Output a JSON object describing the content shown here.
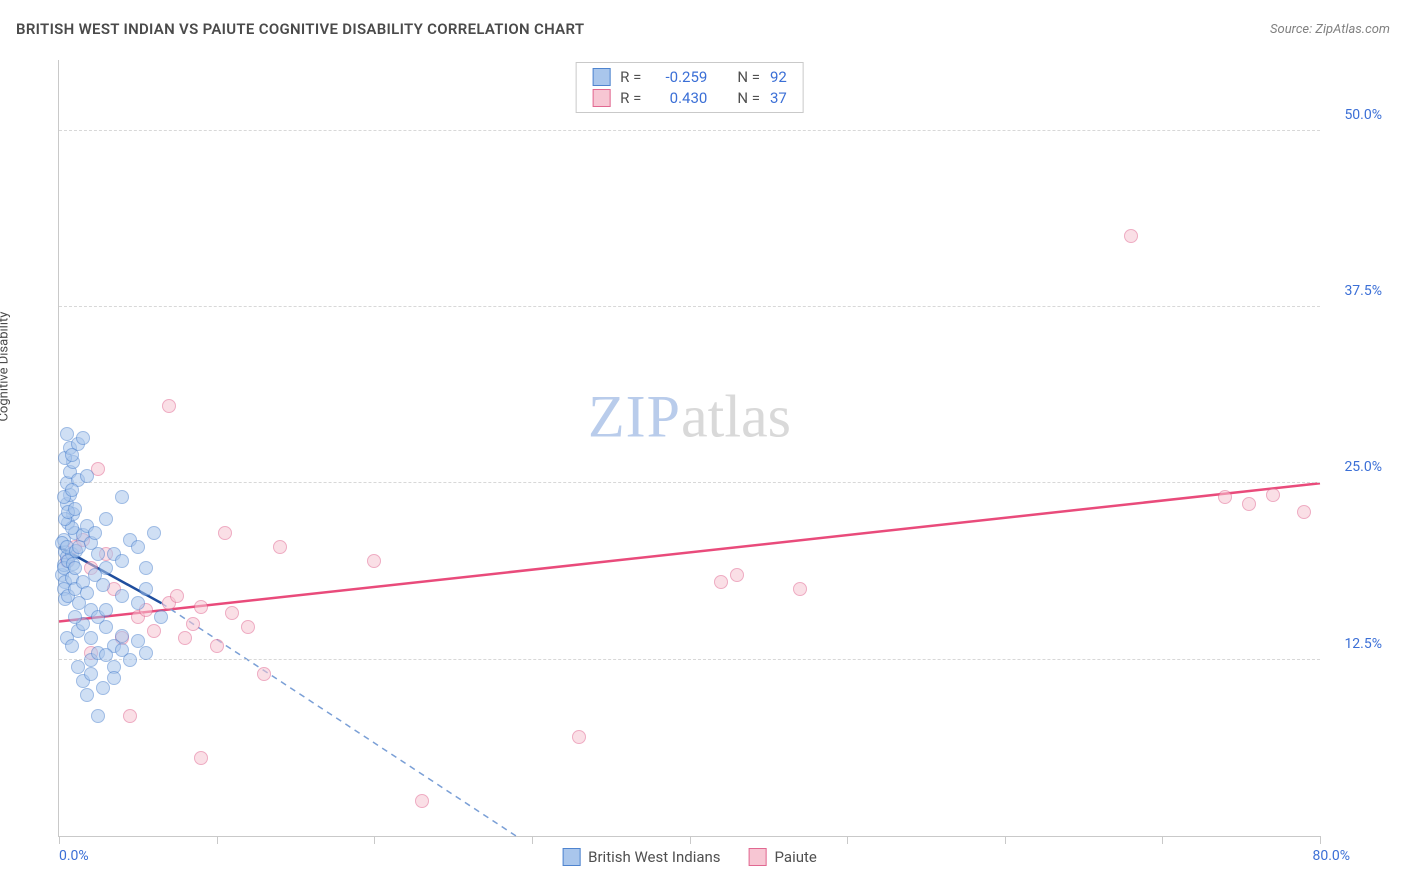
{
  "header": {
    "title": "BRITISH WEST INDIAN VS PAIUTE COGNITIVE DISABILITY CORRELATION CHART",
    "source": "Source: ZipAtlas.com"
  },
  "ylabel": "Cognitive Disability",
  "watermark": {
    "zip": "ZIP",
    "atlas": "atlas"
  },
  "axes": {
    "xmin": 0,
    "xmax": 80,
    "ymin": 0,
    "ymax": 55,
    "xticks": [
      0,
      10,
      20,
      30,
      40,
      50,
      60,
      70,
      80
    ],
    "yticks": [
      12.5,
      25.0,
      37.5,
      50.0
    ],
    "xlabels_shown": {
      "0": "0.0%",
      "80": "80.0%"
    },
    "ylabel_format_suffix": "%"
  },
  "colors": {
    "blue_fill": "#a9c6ec",
    "blue_stroke": "#4f84cf",
    "pink_fill": "#f7c6d3",
    "pink_stroke": "#e16891",
    "grid": "#d8d8d8",
    "axis": "#c9c9c9",
    "tick_text": "#3b6fd6",
    "title_text": "#4a4a4a",
    "trend_blue_solid": "#1f4e9e",
    "trend_blue_dash": "#7a9fd6",
    "trend_pink": "#e94b7b"
  },
  "point_style": {
    "radius": 7,
    "fill_opacity": 0.55,
    "stroke_width": 1.2
  },
  "legend_top": {
    "rows": [
      {
        "swatch": "blue",
        "r_label": "R =",
        "r_value": "-0.259",
        "n_label": "N =",
        "n_value": "92"
      },
      {
        "swatch": "pink",
        "r_label": "R =",
        "r_value": "0.430",
        "n_label": "N =",
        "n_value": "37"
      }
    ]
  },
  "legend_bottom": [
    {
      "swatch": "blue",
      "label": "British West Indians"
    },
    {
      "swatch": "pink",
      "label": "Paiute"
    }
  ],
  "trend_lines": {
    "blue_solid": {
      "x1": 0,
      "y1": 20.5,
      "x2": 6.5,
      "y2": 16.5
    },
    "blue_dash": {
      "x1": 6.5,
      "y1": 16.5,
      "x2": 29,
      "y2": 0
    },
    "pink": {
      "x1": 0,
      "y1": 15.2,
      "x2": 80,
      "y2": 25.0
    }
  },
  "series": {
    "blue": [
      [
        0.2,
        18.5
      ],
      [
        0.3,
        19.2
      ],
      [
        0.4,
        20.1
      ],
      [
        0.5,
        19.8
      ],
      [
        0.3,
        21.0
      ],
      [
        0.6,
        22.2
      ],
      [
        0.8,
        20.0
      ],
      [
        0.4,
        18.0
      ],
      [
        0.5,
        23.5
      ],
      [
        0.7,
        24.2
      ],
      [
        0.9,
        22.8
      ],
      [
        1.0,
        21.5
      ],
      [
        0.2,
        20.8
      ],
      [
        0.3,
        19.0
      ],
      [
        0.6,
        19.5
      ],
      [
        0.8,
        21.8
      ],
      [
        0.4,
        22.5
      ],
      [
        0.5,
        20.5
      ],
      [
        0.9,
        19.3
      ],
      [
        1.1,
        20.2
      ],
      [
        0.3,
        17.5
      ],
      [
        0.4,
        16.8
      ],
      [
        0.6,
        17.0
      ],
      [
        0.8,
        18.3
      ],
      [
        0.5,
        25.0
      ],
      [
        0.7,
        25.8
      ],
      [
        0.9,
        26.5
      ],
      [
        1.2,
        25.2
      ],
      [
        0.3,
        24.0
      ],
      [
        0.6,
        23.0
      ],
      [
        0.8,
        24.5
      ],
      [
        1.0,
        23.2
      ],
      [
        0.4,
        26.8
      ],
      [
        0.7,
        27.5
      ],
      [
        1.2,
        27.8
      ],
      [
        1.5,
        28.2
      ],
      [
        1.8,
        25.5
      ],
      [
        0.5,
        28.5
      ],
      [
        0.8,
        27.0
      ],
      [
        1.0,
        19.0
      ],
      [
        1.3,
        20.5
      ],
      [
        1.5,
        21.3
      ],
      [
        1.8,
        22.0
      ],
      [
        2.0,
        20.8
      ],
      [
        2.3,
        21.5
      ],
      [
        2.5,
        20.0
      ],
      [
        1.0,
        17.5
      ],
      [
        1.3,
        16.5
      ],
      [
        1.5,
        18.0
      ],
      [
        1.8,
        17.2
      ],
      [
        2.0,
        16.0
      ],
      [
        2.3,
        18.5
      ],
      [
        2.8,
        17.8
      ],
      [
        1.2,
        14.5
      ],
      [
        1.5,
        15.0
      ],
      [
        2.0,
        14.0
      ],
      [
        2.5,
        15.5
      ],
      [
        3.0,
        14.8
      ],
      [
        3.5,
        13.5
      ],
      [
        4.0,
        14.2
      ],
      [
        2.0,
        12.5
      ],
      [
        2.5,
        13.0
      ],
      [
        3.0,
        12.8
      ],
      [
        3.5,
        12.0
      ],
      [
        4.0,
        13.2
      ],
      [
        4.5,
        12.5
      ],
      [
        5.0,
        13.8
      ],
      [
        5.5,
        13.0
      ],
      [
        1.5,
        11.0
      ],
      [
        2.0,
        11.5
      ],
      [
        3.5,
        11.2
      ],
      [
        1.8,
        10.0
      ],
      [
        2.8,
        10.5
      ],
      [
        3.0,
        19.0
      ],
      [
        3.5,
        20.0
      ],
      [
        4.0,
        19.5
      ],
      [
        4.5,
        21.0
      ],
      [
        5.0,
        20.5
      ],
      [
        5.5,
        17.5
      ],
      [
        6.0,
        21.5
      ],
      [
        3.0,
        16.0
      ],
      [
        4.0,
        17.0
      ],
      [
        5.0,
        16.5
      ],
      [
        5.5,
        19.0
      ],
      [
        6.5,
        15.5
      ],
      [
        2.5,
        8.5
      ],
      [
        3.0,
        22.5
      ],
      [
        4.0,
        24.0
      ],
      [
        1.0,
        15.5
      ],
      [
        0.5,
        14.0
      ],
      [
        0.8,
        13.5
      ],
      [
        1.2,
        12.0
      ]
    ],
    "pink": [
      [
        0.5,
        19.5
      ],
      [
        1.0,
        20.5
      ],
      [
        1.5,
        21.0
      ],
      [
        2.0,
        19.0
      ],
      [
        2.5,
        26.0
      ],
      [
        3.0,
        20.0
      ],
      [
        4.0,
        14.0
      ],
      [
        5.0,
        15.5
      ],
      [
        5.5,
        16.0
      ],
      [
        6.0,
        14.5
      ],
      [
        7.0,
        16.5
      ],
      [
        7.5,
        17.0
      ],
      [
        8.0,
        14.0
      ],
      [
        8.5,
        15.0
      ],
      [
        9.0,
        16.2
      ],
      [
        10.0,
        13.5
      ],
      [
        10.5,
        21.5
      ],
      [
        11.0,
        15.8
      ],
      [
        12.0,
        14.8
      ],
      [
        13.0,
        11.5
      ],
      [
        14.0,
        20.5
      ],
      [
        7.0,
        30.5
      ],
      [
        4.5,
        8.5
      ],
      [
        9.0,
        5.5
      ],
      [
        20.0,
        19.5
      ],
      [
        23.0,
        2.5
      ],
      [
        33.0,
        7.0
      ],
      [
        42.0,
        18.0
      ],
      [
        43.0,
        18.5
      ],
      [
        47.0,
        17.5
      ],
      [
        68.0,
        42.5
      ],
      [
        74.0,
        24.0
      ],
      [
        75.5,
        23.5
      ],
      [
        77.0,
        24.2
      ],
      [
        79.0,
        23.0
      ],
      [
        2.0,
        13.0
      ],
      [
        3.5,
        17.5
      ]
    ]
  }
}
